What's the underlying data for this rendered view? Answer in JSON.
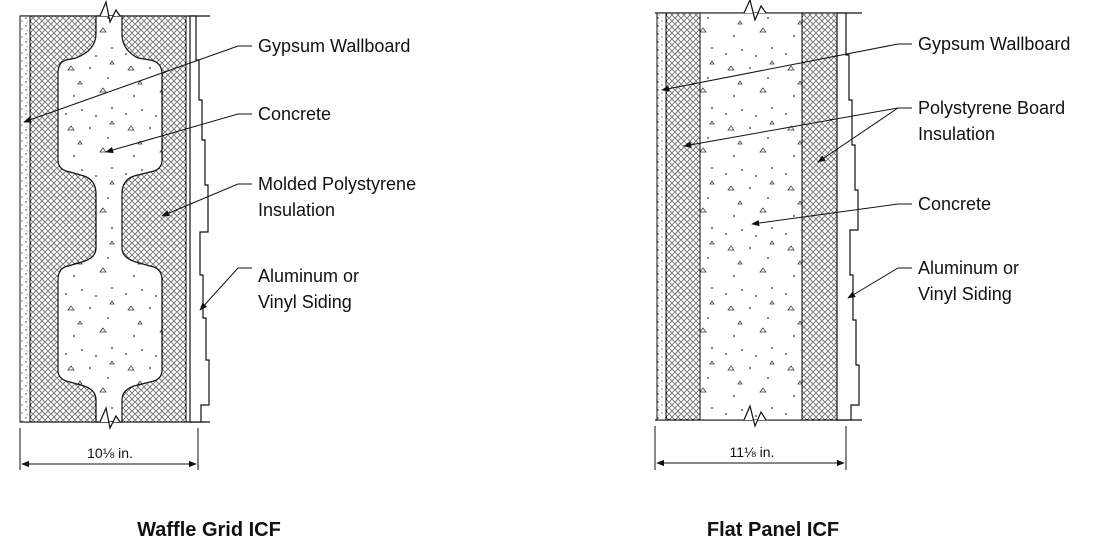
{
  "left_diagram": {
    "caption": "Waffle Grid ICF",
    "dimension": "10⅛ in.",
    "labels": {
      "gypsum": "Gypsum Wallboard",
      "concrete": "Concrete",
      "insulation_line1": "Molded Polystyrene",
      "insulation_line2": "Insulation",
      "siding_line1": "Aluminum or",
      "siding_line2": "Vinyl Siding"
    }
  },
  "right_diagram": {
    "caption": "Flat Panel ICF",
    "dimension": "11⅛ in.",
    "labels": {
      "gypsum": "Gypsum Wallboard",
      "insulation_line1": "Polystyrene Board",
      "insulation_line2": "Insulation",
      "concrete": "Concrete",
      "siding_line1": "Aluminum or",
      "siding_line2": "Vinyl Siding"
    }
  }
}
